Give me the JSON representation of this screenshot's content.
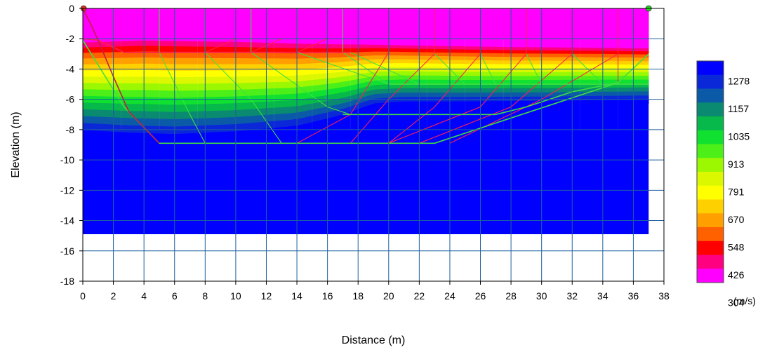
{
  "chart_data": {
    "type": "heatmap",
    "title": "",
    "xlabel": "Distance (m)",
    "ylabel": "Elevation (m)",
    "xlim": [
      0,
      38
    ],
    "ylim": [
      -18,
      0
    ],
    "x_ticks": [
      "0",
      "2",
      "4",
      "6",
      "8",
      "10",
      "12",
      "14",
      "16",
      "18",
      "20",
      "22",
      "24",
      "26",
      "28",
      "30",
      "32",
      "34",
      "36",
      "38"
    ],
    "y_ticks": [
      "0",
      "-2",
      "-4",
      "-6",
      "-8",
      "-10",
      "-12",
      "-14",
      "-16",
      "-18"
    ],
    "grid": true,
    "model_extent": {
      "x": [
        0,
        37
      ],
      "y": [
        -14.9,
        0
      ]
    },
    "sources": [
      {
        "name": "source-left",
        "x": 0.05,
        "y": 0,
        "color": "#e03020"
      },
      {
        "name": "source-right",
        "x": 37,
        "y": 0,
        "color": "#22d822"
      }
    ],
    "colorbar": {
      "unit": "(m/s)",
      "placement": "right",
      "labels": [
        "1278",
        "1157",
        "1035",
        "913",
        "791",
        "670",
        "548",
        "426",
        "304"
      ],
      "bins": [
        "#0000ff",
        "#0a28d8",
        "#0a5aa8",
        "#0a8a70",
        "#07b84a",
        "#10e030",
        "#4cf018",
        "#9cf800",
        "#dcf800",
        "#ffff00",
        "#ffd000",
        "#ffa000",
        "#ff6000",
        "#ff0000",
        "#ff0080",
        "#ff00ff"
      ]
    },
    "velocity_model": {
      "top_color": "#ff00ff",
      "bottom_color": "#0000ff",
      "interface_top": [
        [
          0,
          -2.0
        ],
        [
          4,
          -1.85
        ],
        [
          10,
          -1.95
        ],
        [
          16,
          -2.15
        ],
        [
          22,
          -2.3
        ],
        [
          28,
          -2.4
        ],
        [
          34,
          -2.45
        ],
        [
          37,
          -2.5
        ]
      ],
      "interface_bottom": [
        [
          0,
          -8.5
        ],
        [
          3,
          -8.7
        ],
        [
          6,
          -8.8
        ],
        [
          10,
          -8.6
        ],
        [
          14,
          -8.2
        ],
        [
          17,
          -7.4
        ],
        [
          19,
          -6.6
        ],
        [
          21,
          -6.45
        ],
        [
          24,
          -6.45
        ],
        [
          30,
          -6.4
        ],
        [
          37,
          -6.3
        ]
      ],
      "peak_x": 8
    },
    "refractor_lines": [
      {
        "name": "layer-1",
        "color": "#ff2050",
        "points": [
          [
            0,
            -2.0
          ],
          [
            1,
            -2.1
          ],
          [
            2.7,
            -2.9
          ],
          [
            17.5,
            -2.9
          ]
        ]
      },
      {
        "name": "layer-2",
        "color": "#40e040",
        "points": [
          [
            0,
            -2.1
          ],
          [
            2.7,
            -6.5
          ],
          [
            5,
            -8.9
          ],
          [
            23,
            -8.9
          ],
          [
            35,
            -4.9
          ],
          [
            37,
            -3.0
          ]
        ]
      },
      {
        "name": "layer-3",
        "color": "#40e040",
        "points": [
          [
            17,
            -7.0
          ],
          [
            27,
            -7.0
          ],
          [
            29,
            -6.5
          ],
          [
            32,
            -5.5
          ],
          [
            35,
            -4.9
          ]
        ]
      },
      {
        "name": "layer-4",
        "color": "#40e040",
        "points": [
          [
            20,
            -5.0
          ],
          [
            37,
            -5.0
          ]
        ]
      },
      {
        "name": "left-edge-red",
        "color": "#c02040",
        "points": [
          [
            0,
            0
          ],
          [
            0.5,
            -1.0
          ],
          [
            1,
            -2.1
          ],
          [
            2,
            -4.5
          ],
          [
            3,
            -6.8
          ],
          [
            5,
            -8.9
          ]
        ]
      }
    ],
    "ray_segments": [
      {
        "color": "#40e040",
        "points": [
          [
            2,
            0
          ],
          [
            2,
            -2.1
          ]
        ]
      },
      {
        "color": "#40e040",
        "points": [
          [
            5,
            0
          ],
          [
            5,
            -2.9
          ],
          [
            7,
            -7.0
          ],
          [
            8,
            -8.9
          ]
        ]
      },
      {
        "color": "#40e040",
        "points": [
          [
            8,
            0
          ],
          [
            8,
            -2.9
          ],
          [
            11,
            -6.0
          ],
          [
            13,
            -8.9
          ]
        ]
      },
      {
        "color": "#40e040",
        "points": [
          [
            11,
            0
          ],
          [
            11,
            -2.9
          ],
          [
            16,
            -6.5
          ],
          [
            17.5,
            -7.0
          ]
        ]
      },
      {
        "color": "#40e040",
        "points": [
          [
            14,
            0
          ],
          [
            14,
            -2.9
          ],
          [
            20,
            -5.0
          ]
        ]
      },
      {
        "color": "#40e040",
        "points": [
          [
            17,
            0
          ],
          [
            17,
            -2.9
          ],
          [
            20,
            -5.0
          ]
        ]
      },
      {
        "color": "#ff2050",
        "points": [
          [
            20,
            0
          ],
          [
            20,
            -2.9
          ],
          [
            17.5,
            -7.0
          ],
          [
            14,
            -8.9
          ]
        ]
      },
      {
        "color": "#ff2050",
        "points": [
          [
            23,
            0
          ],
          [
            23,
            -3.0
          ],
          [
            20,
            -6.0
          ],
          [
            17.5,
            -8.9
          ]
        ]
      },
      {
        "color": "#ff2050",
        "points": [
          [
            26,
            0
          ],
          [
            26,
            -3.0
          ],
          [
            23,
            -6.5
          ],
          [
            20,
            -8.9
          ]
        ]
      },
      {
        "color": "#ff2050",
        "points": [
          [
            29,
            0
          ],
          [
            29,
            -3.0
          ],
          [
            26,
            -6.5
          ],
          [
            20,
            -8.9
          ]
        ]
      },
      {
        "color": "#ff2050",
        "points": [
          [
            32,
            0
          ],
          [
            32,
            -3.0
          ],
          [
            28,
            -6.5
          ],
          [
            22,
            -8.9
          ]
        ]
      },
      {
        "color": "#ff2050",
        "points": [
          [
            35,
            0
          ],
          [
            35,
            -3.0
          ],
          [
            30,
            -6.0
          ],
          [
            24,
            -8.9
          ]
        ]
      },
      {
        "color": "#ff2050",
        "points": [
          [
            8,
            -2.9
          ],
          [
            10,
            -2.0
          ]
        ]
      },
      {
        "color": "#ff2050",
        "points": [
          [
            11,
            -2.9
          ],
          [
            13,
            -2.0
          ]
        ]
      },
      {
        "color": "#ff2050",
        "points": [
          [
            14,
            -2.9
          ],
          [
            16,
            -2.0
          ]
        ]
      },
      {
        "color": "#40e040",
        "points": [
          [
            17.5,
            -2.9
          ],
          [
            22,
            -5.0
          ]
        ]
      },
      {
        "color": "#40e040",
        "points": [
          [
            23,
            -3.0
          ],
          [
            25,
            -5.0
          ]
        ]
      },
      {
        "color": "#40e040",
        "points": [
          [
            26,
            -3.0
          ],
          [
            27,
            -5.0
          ]
        ]
      },
      {
        "color": "#40e040",
        "points": [
          [
            29,
            -3.0
          ],
          [
            30,
            -5.0
          ]
        ]
      },
      {
        "color": "#40e040",
        "points": [
          [
            32,
            -3.0
          ],
          [
            34,
            -5.0
          ]
        ]
      },
      {
        "color": "#ff2050",
        "points": [
          [
            35,
            -3.0
          ],
          [
            35,
            -4.9
          ]
        ]
      },
      {
        "color": "#ff2050",
        "points": [
          [
            36,
            0
          ],
          [
            36,
            -2.0
          ]
        ]
      }
    ]
  }
}
